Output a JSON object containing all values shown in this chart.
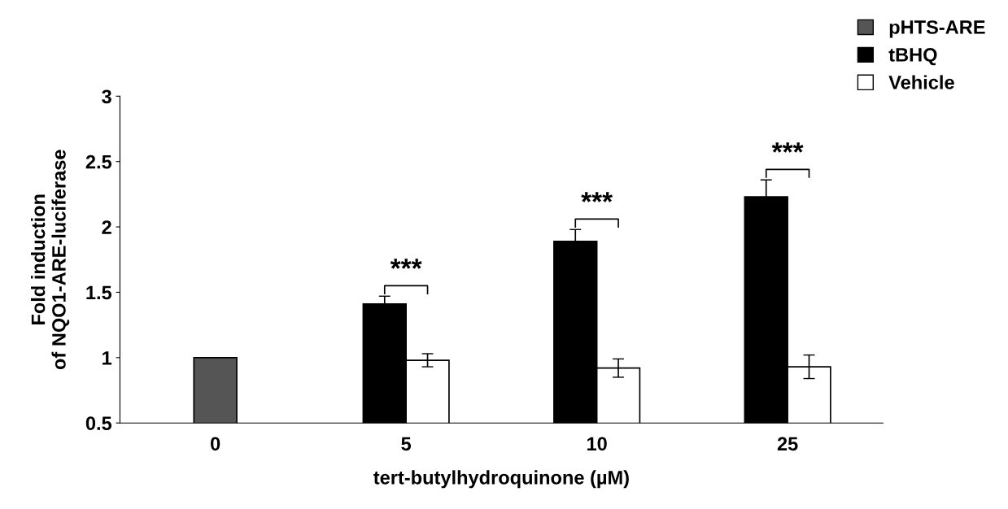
{
  "chart_data": {
    "type": "bar",
    "xlabel": "tert-butylhydroquinone (µM)",
    "ylabel": "Fold induction\nof NQO1-ARE-luciferase",
    "categories": [
      "0",
      "5",
      "10",
      "25"
    ],
    "series": [
      {
        "name": "pHTS-ARE",
        "color": "#555555",
        "values": [
          1.0,
          null,
          null,
          null
        ]
      },
      {
        "name": "tBHQ",
        "color": "#000000",
        "values": [
          null,
          1.41,
          1.89,
          2.23
        ],
        "errors": [
          null,
          0.06,
          0.09,
          0.13
        ]
      },
      {
        "name": "Vehicle",
        "color": "#ffffff",
        "values": [
          null,
          0.98,
          0.92,
          0.93
        ],
        "errors": [
          null,
          0.05,
          0.07,
          0.09
        ]
      }
    ],
    "ylim": [
      0.5,
      3
    ],
    "yticks": [
      0.5,
      1,
      1.5,
      2,
      2.5,
      3
    ],
    "grid": false,
    "legend": "top right",
    "annotations": [
      "***",
      "***",
      "***"
    ]
  }
}
